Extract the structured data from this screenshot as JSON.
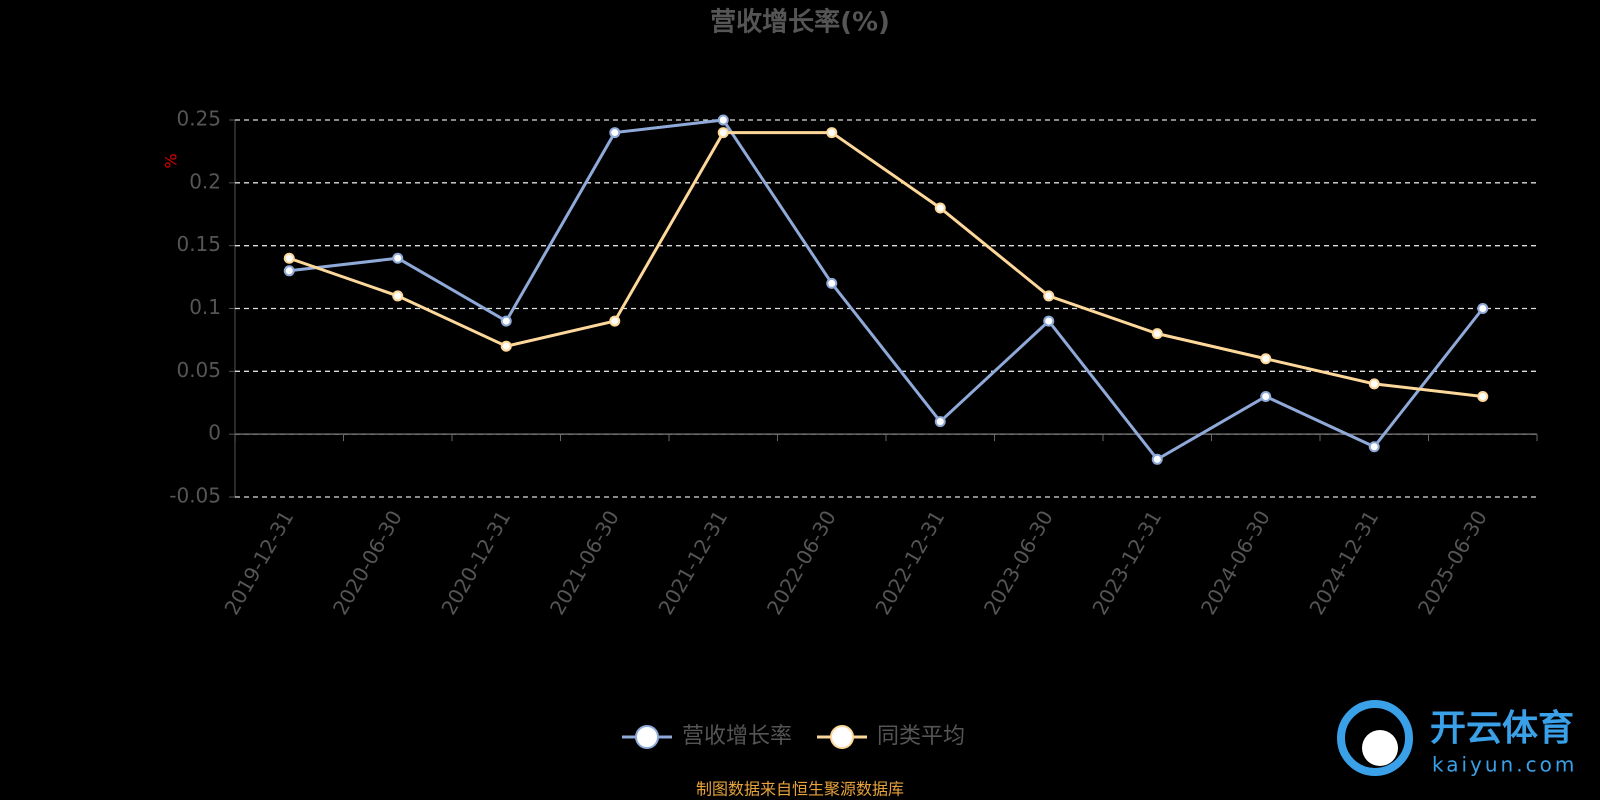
{
  "chart_data": {
    "type": "line",
    "title": "营收增长率(%)",
    "y_label": "%",
    "categories": [
      "2019-12-31",
      "2020-06-30",
      "2020-12-31",
      "2021-06-30",
      "2021-12-31",
      "2022-06-30",
      "2022-12-31",
      "2023-06-30",
      "2023-12-31",
      "2024-06-30",
      "2024-12-31",
      "2025-06-30"
    ],
    "series": [
      {
        "name": "营收增长率",
        "color": "#8fa9d8",
        "values": [
          0.13,
          0.14,
          0.09,
          0.24,
          0.25,
          0.12,
          0.01,
          0.09,
          -0.02,
          0.03,
          -0.01,
          0.1
        ]
      },
      {
        "name": "同类平均",
        "color": "#fdd89a",
        "values": [
          0.14,
          0.11,
          0.07,
          0.09,
          0.24,
          0.24,
          0.18,
          0.11,
          0.08,
          0.06,
          0.04,
          0.03
        ]
      }
    ],
    "ylim": [
      -0.05,
      0.25
    ],
    "yticks": [
      -0.05,
      0,
      0.05,
      0.1,
      0.15,
      0.2,
      0.25
    ],
    "grid": true,
    "legend": "bottom",
    "footer": "制图数据来自恒生聚源数据库",
    "watermark": {
      "brand": "开云体育",
      "site": "kaiyun.com"
    }
  }
}
